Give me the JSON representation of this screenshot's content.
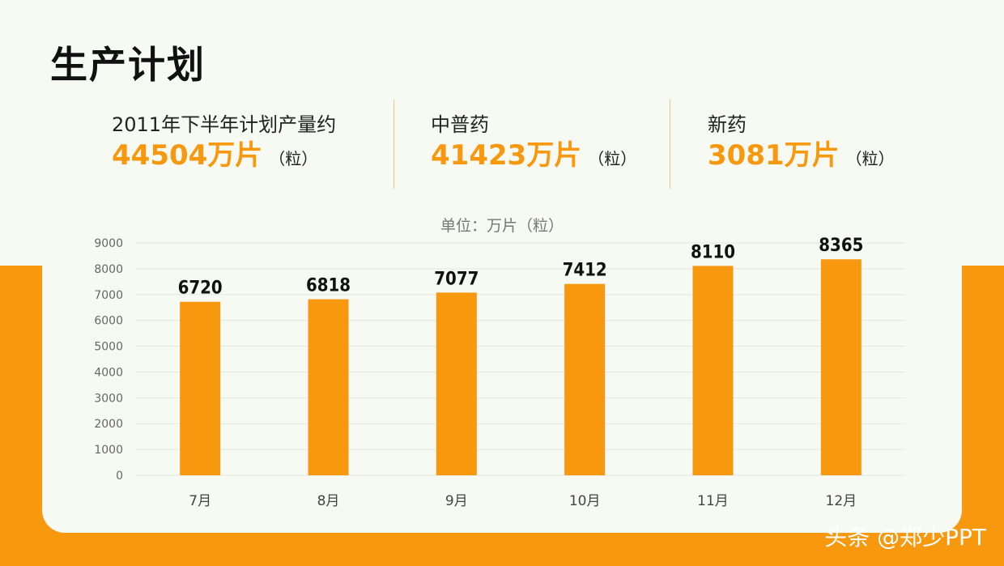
{
  "page": {
    "title": "生产计划"
  },
  "stats": [
    {
      "label": "2011年下半年计划产量约",
      "value": "44504万片",
      "unit": "（粒）"
    },
    {
      "label": "中普药",
      "value": "41423万片",
      "unit": "（粒）"
    },
    {
      "label": "新药",
      "value": "3081万片",
      "unit": "（粒）"
    }
  ],
  "watermark": "头条 @郑少PPT",
  "colors": {
    "accent": "#f7980f",
    "background": "#f6faf2",
    "grid": "#e3e7e0"
  },
  "chart_data": {
    "type": "bar",
    "title": "单位：万片（粒）",
    "categories": [
      "7月",
      "8月",
      "9月",
      "10月",
      "11月",
      "12月"
    ],
    "values": [
      6720,
      6818,
      7077,
      7412,
      8110,
      8365
    ],
    "data_labels": [
      "6720",
      "6818",
      "7077",
      "7412",
      "8110",
      "8365"
    ],
    "yticks": [
      "0",
      "1000",
      "2000",
      "3000",
      "4000",
      "5000",
      "6000",
      "7000",
      "8000",
      "9000"
    ],
    "ylim": [
      0,
      9000
    ],
    "grid": true,
    "legend": "none"
  }
}
